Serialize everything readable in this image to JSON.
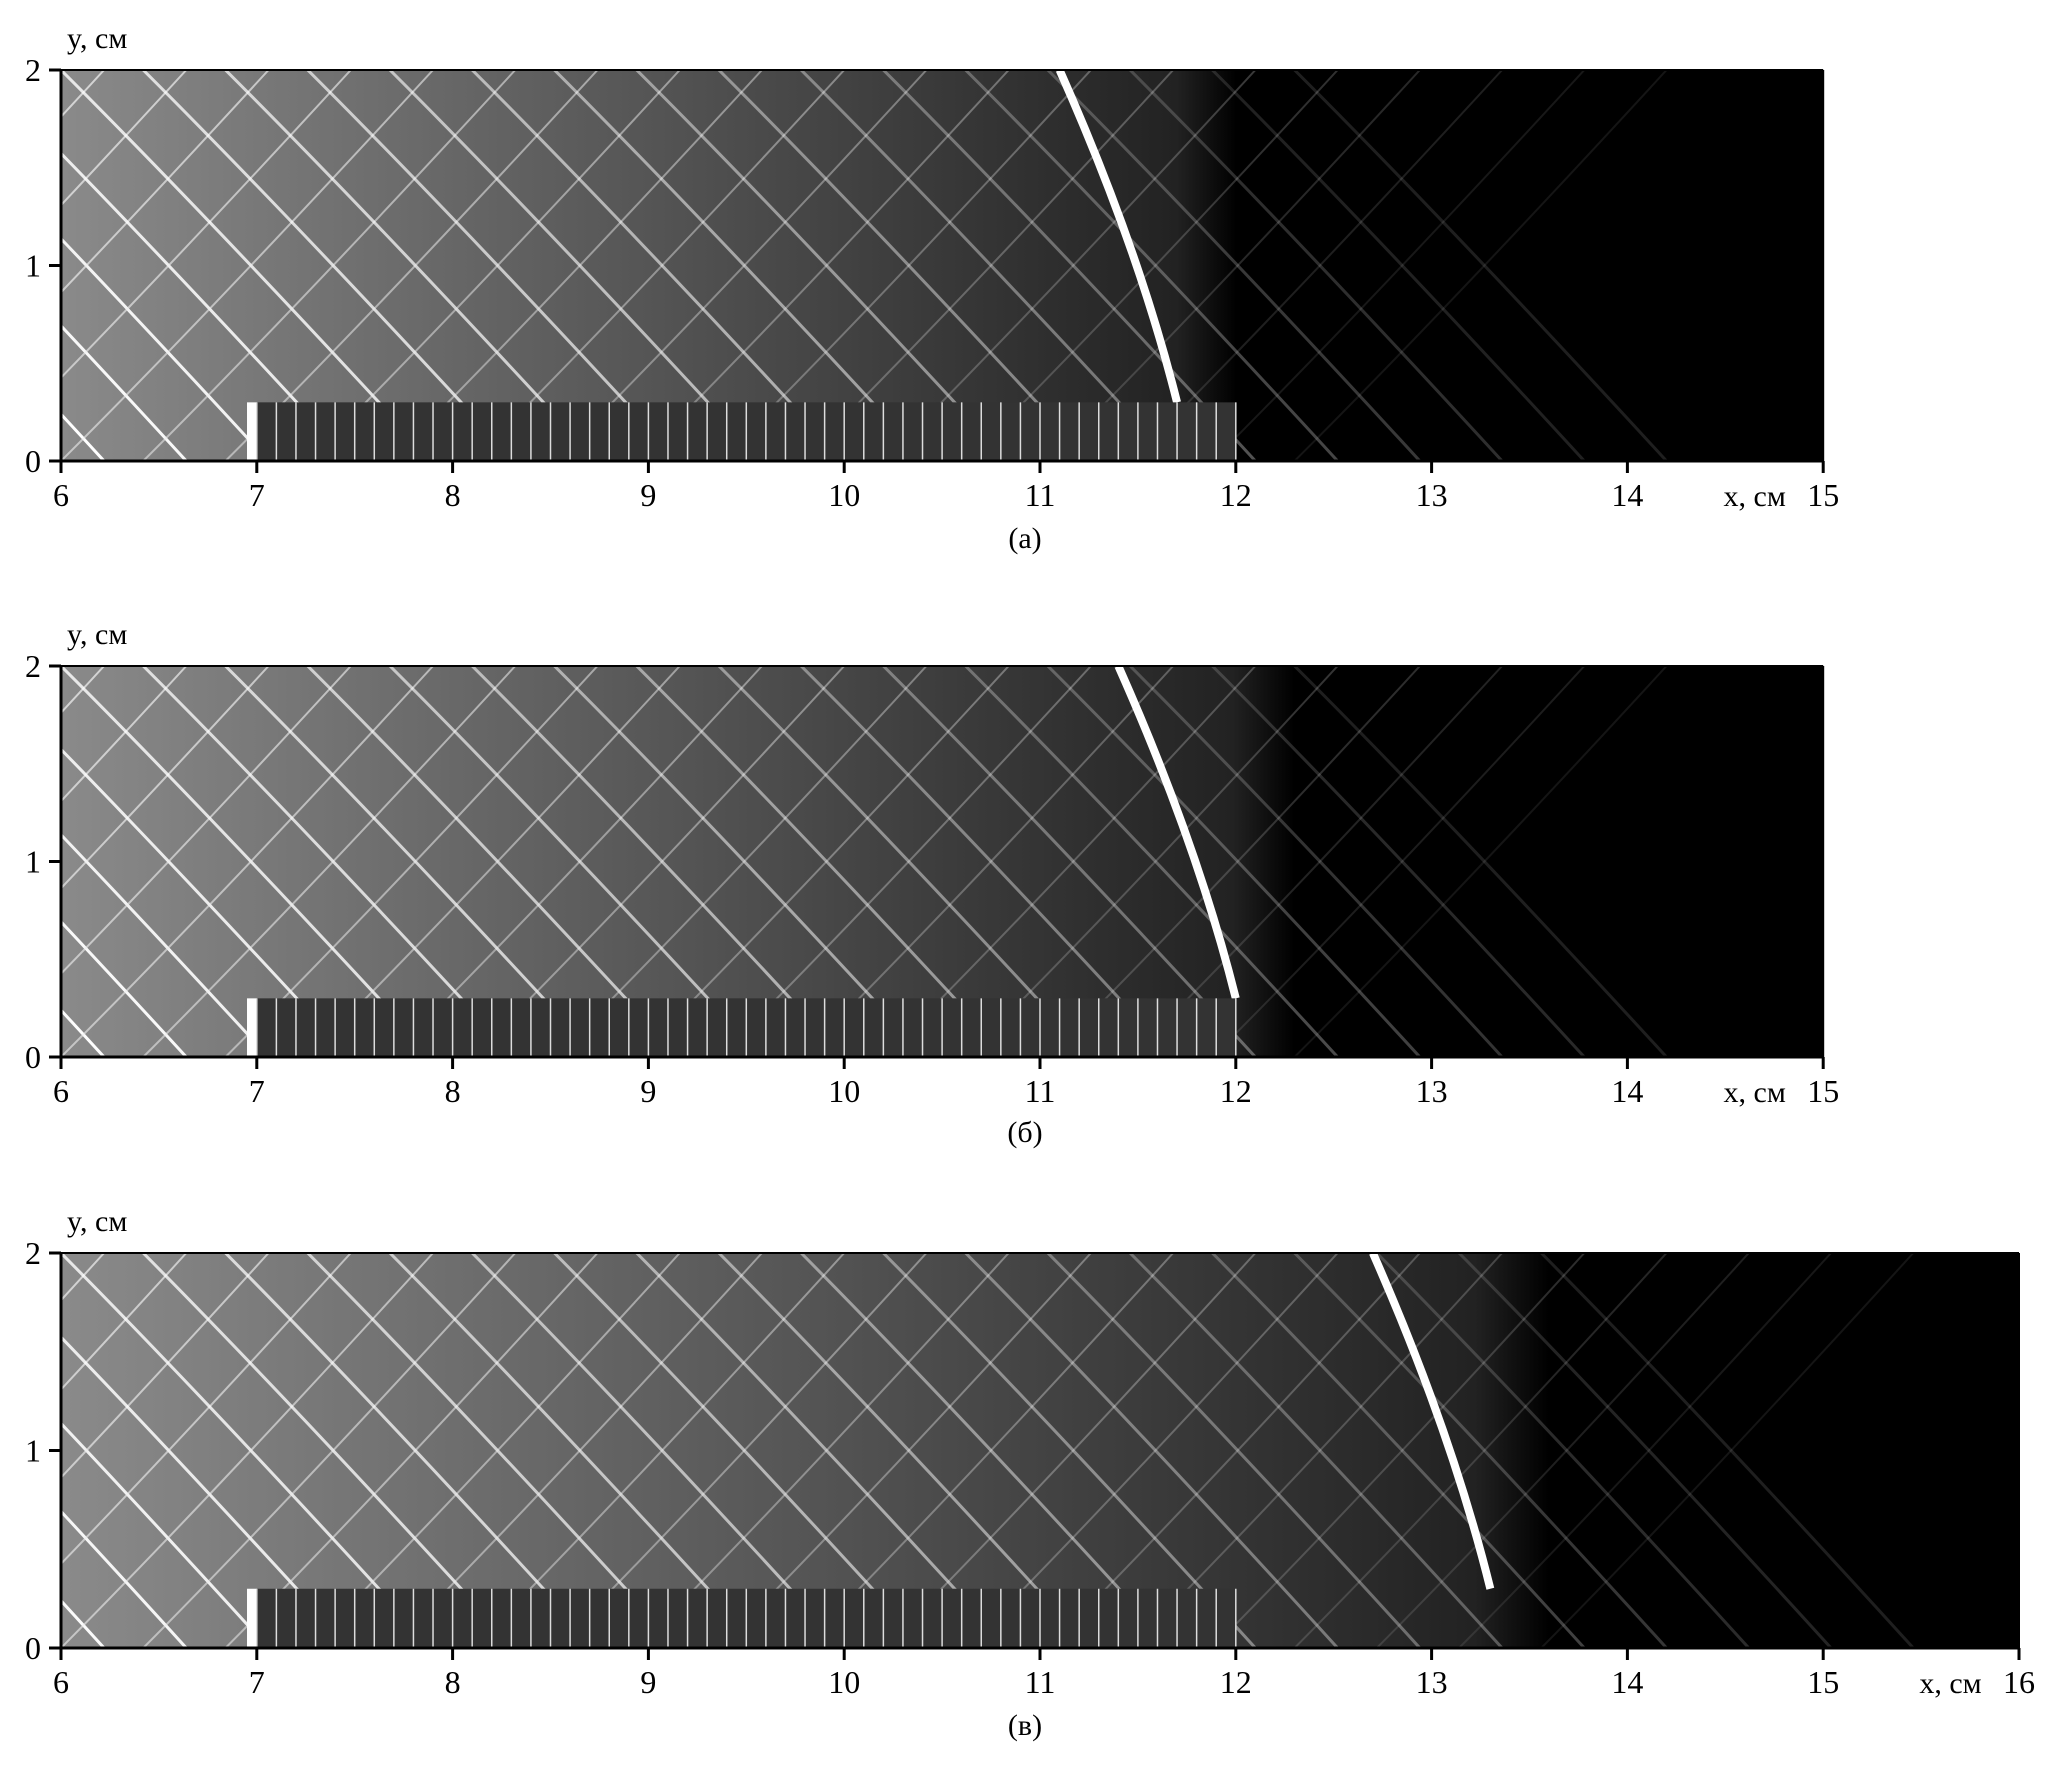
{
  "chart_data": [
    {
      "type": "heatmap",
      "caption": "(а)",
      "xlabel": "x, см",
      "ylabel": "y, см",
      "xlim": [
        6,
        15
      ],
      "ylim": [
        0,
        2
      ],
      "xticks": [
        "6",
        "7",
        "8",
        "9",
        "10",
        "11",
        "12",
        "13",
        "14",
        "15"
      ],
      "yticks": [
        "0",
        "1",
        "2"
      ],
      "colormap": "grayscale",
      "grid": false
    },
    {
      "type": "heatmap",
      "caption": "(б)",
      "xlabel": "x, см",
      "ylabel": "y, см",
      "xlim": [
        6,
        15
      ],
      "ylim": [
        0,
        2
      ],
      "xticks": [
        "6",
        "7",
        "8",
        "9",
        "10",
        "11",
        "12",
        "13",
        "14",
        "15"
      ],
      "yticks": [
        "0",
        "1",
        "2"
      ],
      "colormap": "grayscale",
      "grid": false
    },
    {
      "type": "heatmap",
      "caption": "(в)",
      "xlabel": "x, см",
      "ylabel": "y, см",
      "xlim": [
        6,
        16
      ],
      "ylim": [
        0,
        2
      ],
      "xticks": [
        "6",
        "7",
        "8",
        "9",
        "10",
        "11",
        "12",
        "13",
        "14",
        "15",
        "16"
      ],
      "yticks": [
        "0",
        "1",
        "2"
      ],
      "colormap": "grayscale",
      "grid": false
    }
  ]
}
